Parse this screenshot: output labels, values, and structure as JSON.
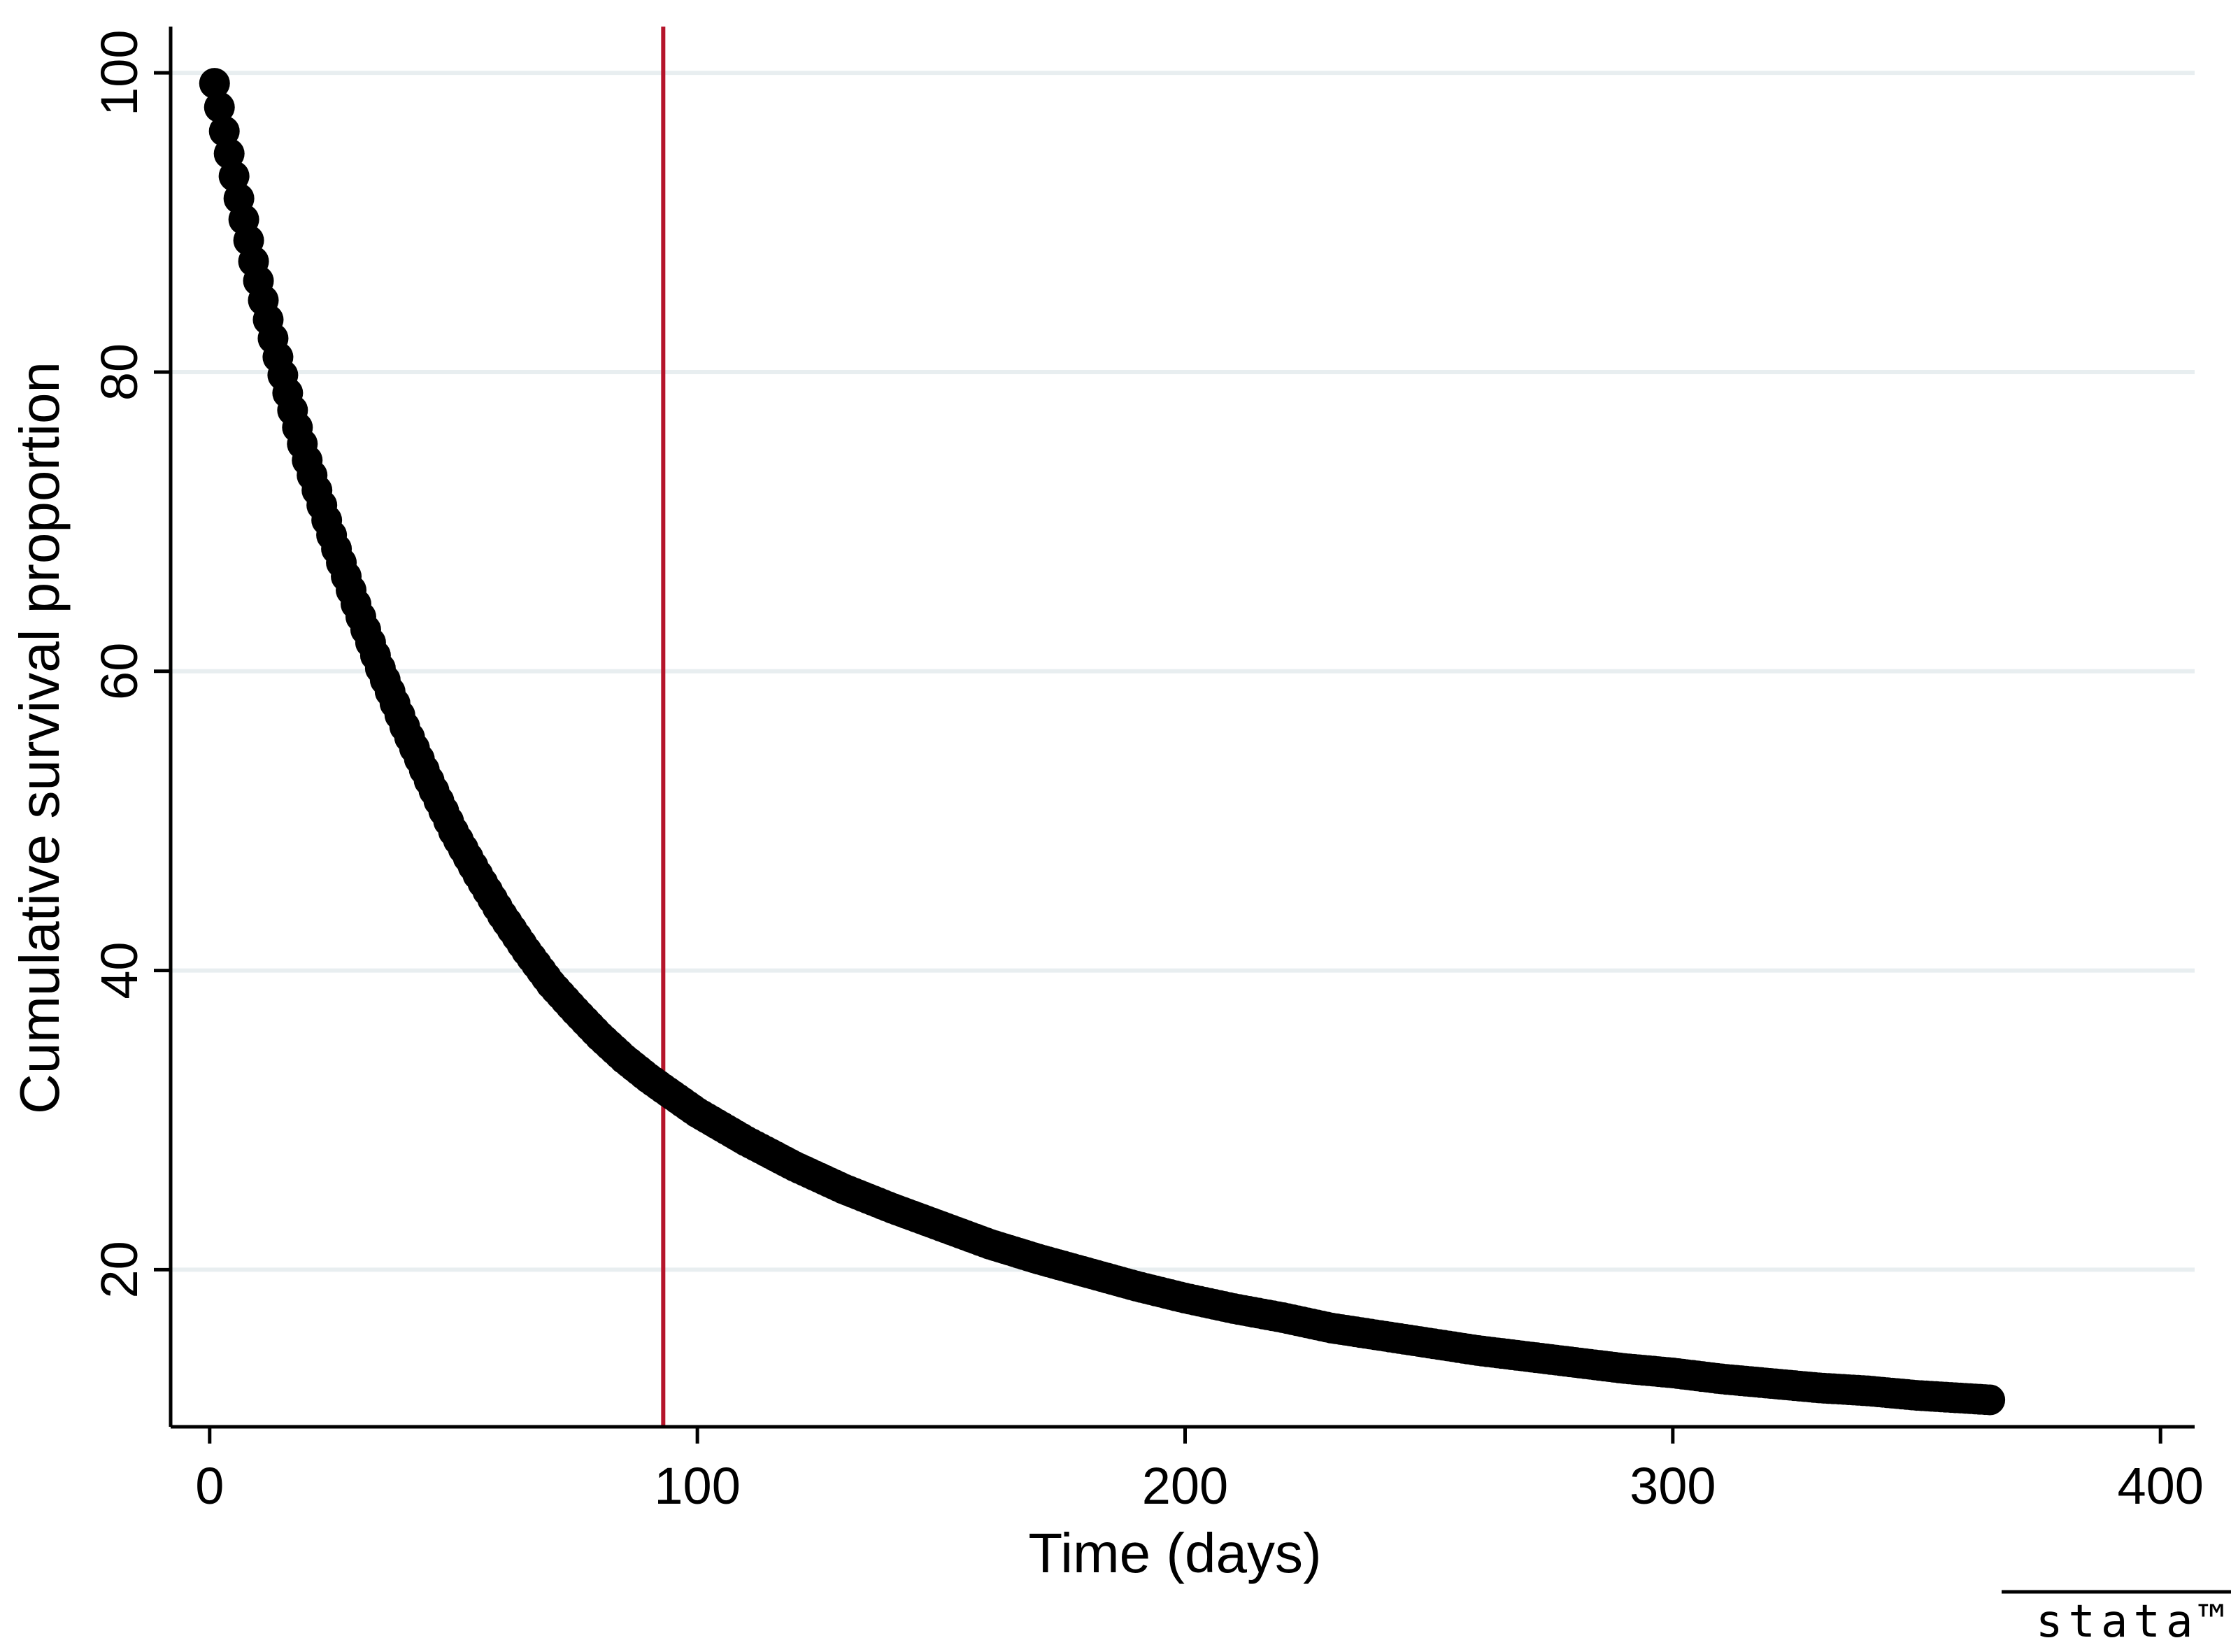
{
  "chart_data": {
    "type": "scatter",
    "title": "",
    "xlabel": "Time (days)",
    "ylabel": "Cumulative survival proportion",
    "xlim": [
      -8,
      407
    ],
    "ylim": [
      9.5,
      103
    ],
    "xticks": [
      0,
      100,
      200,
      300,
      400
    ],
    "yticks": [
      20,
      40,
      60,
      80,
      100
    ],
    "grid": {
      "horizontal": true,
      "vertical": false
    },
    "legend": "none",
    "series": [
      {
        "marker": "filled-circle",
        "color": "#000000",
        "x": [
          1,
          2,
          3,
          4,
          5,
          6,
          7,
          8,
          9,
          10,
          12,
          14,
          16,
          18,
          20,
          25,
          30,
          35,
          40,
          45,
          50,
          55,
          60,
          65,
          70,
          75,
          80,
          85,
          90,
          93,
          100,
          110,
          120,
          130,
          140,
          150,
          160,
          170,
          180,
          190,
          200,
          210,
          220,
          230,
          240,
          250,
          260,
          270,
          280,
          290,
          300,
          310,
          320,
          330,
          340,
          350,
          360,
          365
        ],
        "y": [
          99.3,
          97.7,
          96.1,
          94.6,
          93.1,
          91.6,
          90.2,
          88.8,
          87.4,
          86.1,
          83.5,
          81.0,
          78.6,
          76.3,
          74.1,
          69.1,
          64.5,
          60.2,
          56.3,
          52.7,
          49.3,
          46.4,
          43.7,
          41.3,
          39.1,
          37.3,
          35.6,
          34.1,
          32.8,
          32.1,
          30.5,
          28.6,
          26.9,
          25.4,
          24.1,
          22.9,
          21.7,
          20.7,
          19.8,
          18.9,
          18.1,
          17.4,
          16.8,
          16.1,
          15.6,
          15.1,
          14.6,
          14.2,
          13.8,
          13.4,
          13.1,
          12.7,
          12.4,
          12.1,
          11.9,
          11.6,
          11.4,
          11.3
        ]
      }
    ],
    "reference_line": {
      "orientation": "vertical",
      "x": 93,
      "color": "#b5152b"
    }
  },
  "watermark": {
    "text": "stata™"
  }
}
